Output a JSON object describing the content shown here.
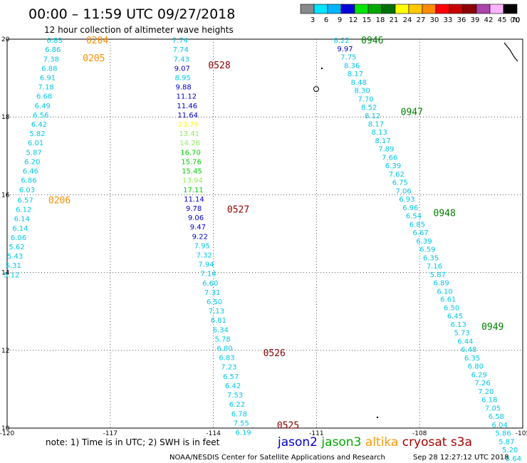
{
  "header": {
    "title": "00:00 – 11:59 UTC 09/27/2018",
    "subtitle": "12 hour collection of altimeter wave heights"
  },
  "legend": {
    "unit": "(ft)",
    "bins": [
      {
        "label": "3",
        "color": "#8a8a8a"
      },
      {
        "label": "6",
        "color": "#00e5ff"
      },
      {
        "label": "9",
        "color": "#00b4ff"
      },
      {
        "label": "12",
        "color": "#0000d8"
      },
      {
        "label": "15",
        "color": "#00e600"
      },
      {
        "label": "18",
        "color": "#00a800"
      },
      {
        "label": "21",
        "color": "#007000"
      },
      {
        "label": "24",
        "color": "#ffff00"
      },
      {
        "label": "27",
        "color": "#ffc800"
      },
      {
        "label": "30",
        "color": "#ff8c00"
      },
      {
        "label": "33",
        "color": "#ff0000"
      },
      {
        "label": "36",
        "color": "#c80000"
      },
      {
        "label": "39",
        "color": "#8c0000"
      },
      {
        "label": "42",
        "color": "#aa44aa"
      },
      {
        "label": "45",
        "color": "#ffb4ff"
      },
      {
        "label": "70",
        "color": "#000000"
      }
    ]
  },
  "footer": {
    "note": "note: 1) Time is in UTC; 2) SWH is in feet",
    "missions": [
      {
        "name": "jason2",
        "color": "#0000cc"
      },
      {
        "name": "jason3",
        "color": "#00aa00"
      },
      {
        "name": "altika",
        "color": "#ff9900"
      },
      {
        "name": "cryosat s3a",
        "color": "#aa0000"
      }
    ],
    "credit": "NOAA/NESDIS Center for Satellite Applications and Research",
    "timestamp": "Sep 28 12:27:12 UTC 2018"
  },
  "colors": {
    "altika_label": "#ff8c00",
    "cryosat_label": "#8b0000",
    "jason3_label": "#008000"
  },
  "chart_data": {
    "type": "scatter",
    "title": "00:00 – 11:59 UTC 09/27/2018",
    "subtitle": "12 hour collection of altimeter wave heights",
    "xlabel": "",
    "ylabel": "",
    "xlim": [
      -120,
      -105
    ],
    "ylim": [
      10,
      20
    ],
    "xticks": [
      "-120",
      "-117",
      "-114",
      "-111",
      "-108",
      "-105"
    ],
    "yticks": [
      "20",
      "18",
      "16",
      "14",
      "12",
      "10"
    ],
    "grid": true,
    "point_colors": {
      "c1": "#00c8e6",
      "c2": "#0000c8",
      "c3": "#00d000",
      "c4": "#90ee60",
      "c5": "#ffff00"
    },
    "tracks": [
      {
        "mission": "altika",
        "pass_labels": [
          {
            "text": "0204",
            "lon": -117.7,
            "lat": 19.98
          },
          {
            "text": "0205",
            "lon": -117.8,
            "lat": 19.52
          },
          {
            "text": "0206",
            "lon": -118.8,
            "lat": 15.87
          }
        ],
        "points": [
          {
            "v": "6.83",
            "lon": -118.85,
            "lat": 19.98,
            "c": "c1"
          },
          {
            "v": "6.86",
            "lon": -118.9,
            "lat": 19.74,
            "c": "c1"
          },
          {
            "v": "7.38",
            "lon": -118.95,
            "lat": 19.5,
            "c": "c1"
          },
          {
            "v": "6.88",
            "lon": -119.0,
            "lat": 19.26,
            "c": "c1"
          },
          {
            "v": "6.91",
            "lon": -119.05,
            "lat": 19.02,
            "c": "c1"
          },
          {
            "v": "7.18",
            "lon": -119.1,
            "lat": 18.78,
            "c": "c1"
          },
          {
            "v": "6.68",
            "lon": -119.15,
            "lat": 18.54,
            "c": "c1"
          },
          {
            "v": "6.49",
            "lon": -119.2,
            "lat": 18.3,
            "c": "c1"
          },
          {
            "v": "6.56",
            "lon": -119.25,
            "lat": 18.06,
            "c": "c1"
          },
          {
            "v": "6.42",
            "lon": -119.3,
            "lat": 17.82,
            "c": "c1"
          },
          {
            "v": "5.82",
            "lon": -119.35,
            "lat": 17.58,
            "c": "c1"
          },
          {
            "v": "6.01",
            "lon": -119.4,
            "lat": 17.34,
            "c": "c1"
          },
          {
            "v": "5.87",
            "lon": -119.45,
            "lat": 17.1,
            "c": "c1"
          },
          {
            "v": "6.20",
            "lon": -119.5,
            "lat": 16.86,
            "c": "c1"
          },
          {
            "v": "6.46",
            "lon": -119.55,
            "lat": 16.62,
            "c": "c1"
          },
          {
            "v": "6.86",
            "lon": -119.6,
            "lat": 16.38,
            "c": "c1"
          },
          {
            "v": "6.03",
            "lon": -119.65,
            "lat": 16.14,
            "c": "c1"
          },
          {
            "v": "6.57",
            "lon": -119.7,
            "lat": 15.87,
            "c": "c1"
          },
          {
            "v": "6.12",
            "lon": -119.75,
            "lat": 15.63,
            "c": "c1"
          },
          {
            "v": "6.14",
            "lon": -119.8,
            "lat": 15.39,
            "c": "c1"
          },
          {
            "v": "6.14",
            "lon": -119.85,
            "lat": 15.15,
            "c": "c1"
          },
          {
            "v": "6.06",
            "lon": -119.9,
            "lat": 14.91,
            "c": "c1"
          },
          {
            "v": "5.62",
            "lon": -119.95,
            "lat": 14.67,
            "c": "c1"
          },
          {
            "v": "5.43",
            "lon": -120.0,
            "lat": 14.43,
            "c": "c1"
          },
          {
            "v": "5.31",
            "lon": -120.05,
            "lat": 14.19,
            "c": "c1"
          },
          {
            "v": "5.12",
            "lon": -120.1,
            "lat": 13.95,
            "c": "c1"
          }
        ]
      },
      {
        "mission": "cryosat s3a",
        "pass_labels": [
          {
            "text": "0528",
            "lon": -114.15,
            "lat": 19.34
          },
          {
            "text": "0527",
            "lon": -113.6,
            "lat": 15.63
          },
          {
            "text": "0526",
            "lon": -112.55,
            "lat": 11.94
          },
          {
            "text": "0525",
            "lon": -112.15,
            "lat": 10.08
          }
        ],
        "points": [
          {
            "v": "7.74",
            "lon": -115.2,
            "lat": 19.98,
            "c": "c1"
          },
          {
            "v": "7.74",
            "lon": -115.18,
            "lat": 19.74,
            "c": "c1"
          },
          {
            "v": "7.43",
            "lon": -115.16,
            "lat": 19.5,
            "c": "c1"
          },
          {
            "v": "9.07",
            "lon": -115.14,
            "lat": 19.26,
            "c": "c2"
          },
          {
            "v": "8.95",
            "lon": -115.12,
            "lat": 19.02,
            "c": "c1"
          },
          {
            "v": "9.88",
            "lon": -115.1,
            "lat": 18.78,
            "c": "c2"
          },
          {
            "v": "11.12",
            "lon": -115.08,
            "lat": 18.54,
            "c": "c2"
          },
          {
            "v": "11.46",
            "lon": -115.06,
            "lat": 18.3,
            "c": "c2"
          },
          {
            "v": "11.64",
            "lon": -115.04,
            "lat": 18.06,
            "c": "c2"
          },
          {
            "v": "23.79",
            "lon": -115.02,
            "lat": 17.82,
            "c": "c5"
          },
          {
            "v": "13.41",
            "lon": -115.0,
            "lat": 17.58,
            "c": "c4"
          },
          {
            "v": "14.28",
            "lon": -114.98,
            "lat": 17.34,
            "c": "c4"
          },
          {
            "v": "16.70",
            "lon": -114.96,
            "lat": 17.1,
            "c": "c3"
          },
          {
            "v": "15.76",
            "lon": -114.94,
            "lat": 16.86,
            "c": "c3"
          },
          {
            "v": "15.45",
            "lon": -114.92,
            "lat": 16.62,
            "c": "c3"
          },
          {
            "v": "13.94",
            "lon": -114.9,
            "lat": 16.38,
            "c": "c4"
          },
          {
            "v": "17.11",
            "lon": -114.88,
            "lat": 16.14,
            "c": "c3"
          },
          {
            "v": "11.14",
            "lon": -114.86,
            "lat": 15.9,
            "c": "c2"
          },
          {
            "v": "9.78",
            "lon": -114.8,
            "lat": 15.66,
            "c": "c2"
          },
          {
            "v": "9.06",
            "lon": -114.74,
            "lat": 15.42,
            "c": "c2"
          },
          {
            "v": "9.47",
            "lon": -114.68,
            "lat": 15.18,
            "c": "c2"
          },
          {
            "v": "9.22",
            "lon": -114.62,
            "lat": 14.94,
            "c": "c2"
          },
          {
            "v": "7.95",
            "lon": -114.56,
            "lat": 14.7,
            "c": "c1"
          },
          {
            "v": "7.32",
            "lon": -114.5,
            "lat": 14.46,
            "c": "c1"
          },
          {
            "v": "7.94",
            "lon": -114.44,
            "lat": 14.22,
            "c": "c1"
          },
          {
            "v": "7.14",
            "lon": -114.38,
            "lat": 13.98,
            "c": "c1"
          },
          {
            "v": "6.60",
            "lon": -114.32,
            "lat": 13.74,
            "c": "c1"
          },
          {
            "v": "7.31",
            "lon": -114.26,
            "lat": 13.5,
            "c": "c1"
          },
          {
            "v": "6.50",
            "lon": -114.2,
            "lat": 13.26,
            "c": "c1"
          },
          {
            "v": "7.13",
            "lon": -114.14,
            "lat": 13.02,
            "c": "c1"
          },
          {
            "v": "6.81",
            "lon": -114.08,
            "lat": 12.78,
            "c": "c1"
          },
          {
            "v": "6.34",
            "lon": -114.02,
            "lat": 12.54,
            "c": "c1"
          },
          {
            "v": "5.78",
            "lon": -113.96,
            "lat": 12.3,
            "c": "c1"
          },
          {
            "v": "6.80",
            "lon": -113.9,
            "lat": 12.06,
            "c": "c1"
          },
          {
            "v": "6.83",
            "lon": -113.84,
            "lat": 11.82,
            "c": "c1"
          },
          {
            "v": "7.23",
            "lon": -113.78,
            "lat": 11.58,
            "c": "c1"
          },
          {
            "v": "6.57",
            "lon": -113.72,
            "lat": 11.34,
            "c": "c1"
          },
          {
            "v": "6.42",
            "lon": -113.66,
            "lat": 11.1,
            "c": "c1"
          },
          {
            "v": "7.53",
            "lon": -113.6,
            "lat": 10.86,
            "c": "c1"
          },
          {
            "v": "6.22",
            "lon": -113.54,
            "lat": 10.62,
            "c": "c1"
          },
          {
            "v": "6.78",
            "lon": -113.48,
            "lat": 10.38,
            "c": "c1"
          },
          {
            "v": "7.55",
            "lon": -113.42,
            "lat": 10.14,
            "c": "c1"
          },
          {
            "v": "6.19",
            "lon": -113.36,
            "lat": 9.9,
            "c": "c1"
          }
        ]
      },
      {
        "mission": "jason3",
        "pass_labels": [
          {
            "text": "0946",
            "lon": -109.7,
            "lat": 19.98
          },
          {
            "text": "0947",
            "lon": -108.55,
            "lat": 18.14
          },
          {
            "text": "0948",
            "lon": -107.6,
            "lat": 15.54
          },
          {
            "text": "0949",
            "lon": -106.2,
            "lat": 12.62
          }
        ],
        "points": [
          {
            "v": "8.22",
            "lon": -110.5,
            "lat": 19.98,
            "c": "c1"
          },
          {
            "v": "9.97",
            "lon": -110.4,
            "lat": 19.76,
            "c": "c2"
          },
          {
            "v": "7.75",
            "lon": -110.3,
            "lat": 19.55,
            "c": "c1"
          },
          {
            "v": "8.36",
            "lon": -110.2,
            "lat": 19.33,
            "c": "c1"
          },
          {
            "v": "8.17",
            "lon": -110.1,
            "lat": 19.12,
            "c": "c1"
          },
          {
            "v": "8.48",
            "lon": -110.0,
            "lat": 18.9,
            "c": "c1"
          },
          {
            "v": "8.30",
            "lon": -109.9,
            "lat": 18.69,
            "c": "c1"
          },
          {
            "v": "7.70",
            "lon": -109.8,
            "lat": 18.47,
            "c": "c1"
          },
          {
            "v": "8.52",
            "lon": -109.7,
            "lat": 18.26,
            "c": "c1"
          },
          {
            "v": "8.12",
            "lon": -109.6,
            "lat": 18.04,
            "c": "c1"
          },
          {
            "v": "8.17",
            "lon": -109.5,
            "lat": 17.83,
            "c": "c1"
          },
          {
            "v": "8.13",
            "lon": -109.4,
            "lat": 17.62,
            "c": "c1"
          },
          {
            "v": "8.17",
            "lon": -109.3,
            "lat": 17.4,
            "c": "c1"
          },
          {
            "v": "7.89",
            "lon": -109.2,
            "lat": 17.19,
            "c": "c1"
          },
          {
            "v": "7.66",
            "lon": -109.1,
            "lat": 16.97,
            "c": "c1"
          },
          {
            "v": "6.39",
            "lon": -109.0,
            "lat": 16.76,
            "c": "c1"
          },
          {
            "v": "7.62",
            "lon": -108.9,
            "lat": 16.54,
            "c": "c1"
          },
          {
            "v": "6.75",
            "lon": -108.8,
            "lat": 16.33,
            "c": "c1"
          },
          {
            "v": "7.06",
            "lon": -108.7,
            "lat": 16.11,
            "c": "c1"
          },
          {
            "v": "6.93",
            "lon": -108.6,
            "lat": 15.9,
            "c": "c1"
          },
          {
            "v": "6.96",
            "lon": -108.5,
            "lat": 15.68,
            "c": "c1"
          },
          {
            "v": "6.54",
            "lon": -108.4,
            "lat": 15.47,
            "c": "c1"
          },
          {
            "v": "6.85",
            "lon": -108.3,
            "lat": 15.25,
            "c": "c1"
          },
          {
            "v": "6.67",
            "lon": -108.2,
            "lat": 15.04,
            "c": "c1"
          },
          {
            "v": "6.39",
            "lon": -108.1,
            "lat": 14.82,
            "c": "c1"
          },
          {
            "v": "6.59",
            "lon": -108.0,
            "lat": 14.61,
            "c": "c1"
          },
          {
            "v": "6.35",
            "lon": -107.9,
            "lat": 14.39,
            "c": "c1"
          },
          {
            "v": "7.16",
            "lon": -107.8,
            "lat": 14.18,
            "c": "c1"
          },
          {
            "v": "5.87",
            "lon": -107.7,
            "lat": 13.96,
            "c": "c1"
          },
          {
            "v": "6.89",
            "lon": -107.6,
            "lat": 13.75,
            "c": "c1"
          },
          {
            "v": "6.10",
            "lon": -107.5,
            "lat": 13.53,
            "c": "c1"
          },
          {
            "v": "6.61",
            "lon": -107.4,
            "lat": 13.32,
            "c": "c1"
          },
          {
            "v": "6.50",
            "lon": -107.3,
            "lat": 13.1,
            "c": "c1"
          },
          {
            "v": "6.45",
            "lon": -107.2,
            "lat": 12.89,
            "c": "c1"
          },
          {
            "v": "6.13",
            "lon": -107.1,
            "lat": 12.67,
            "c": "c1"
          },
          {
            "v": "5.73",
            "lon": -107.0,
            "lat": 12.46,
            "c": "c1"
          },
          {
            "v": "6.44",
            "lon": -106.9,
            "lat": 12.24,
            "c": "c1"
          },
          {
            "v": "6.48",
            "lon": -106.8,
            "lat": 12.03,
            "c": "c1"
          },
          {
            "v": "6.35",
            "lon": -106.7,
            "lat": 11.81,
            "c": "c1"
          },
          {
            "v": "6.80",
            "lon": -106.6,
            "lat": 11.6,
            "c": "c1"
          },
          {
            "v": "6.29",
            "lon": -106.5,
            "lat": 11.38,
            "c": "c1"
          },
          {
            "v": "7.26",
            "lon": -106.4,
            "lat": 11.17,
            "c": "c1"
          },
          {
            "v": "7.20",
            "lon": -106.3,
            "lat": 10.95,
            "c": "c1"
          },
          {
            "v": "6.18",
            "lon": -106.2,
            "lat": 10.74,
            "c": "c1"
          },
          {
            "v": "7.05",
            "lon": -106.1,
            "lat": 10.52,
            "c": "c1"
          },
          {
            "v": "6.58",
            "lon": -106.0,
            "lat": 10.31,
            "c": "c1"
          },
          {
            "v": "6.04",
            "lon": -105.9,
            "lat": 10.09,
            "c": "c1"
          },
          {
            "v": "5.86",
            "lon": -105.8,
            "lat": 9.88,
            "c": "c1"
          },
          {
            "v": "5.87",
            "lon": -105.7,
            "lat": 9.66,
            "c": "c1"
          },
          {
            "v": "5.20",
            "lon": -105.6,
            "lat": 9.45,
            "c": "c1"
          },
          {
            "v": "5.64",
            "lon": -105.5,
            "lat": 9.23,
            "c": "c1"
          }
        ]
      }
    ]
  }
}
